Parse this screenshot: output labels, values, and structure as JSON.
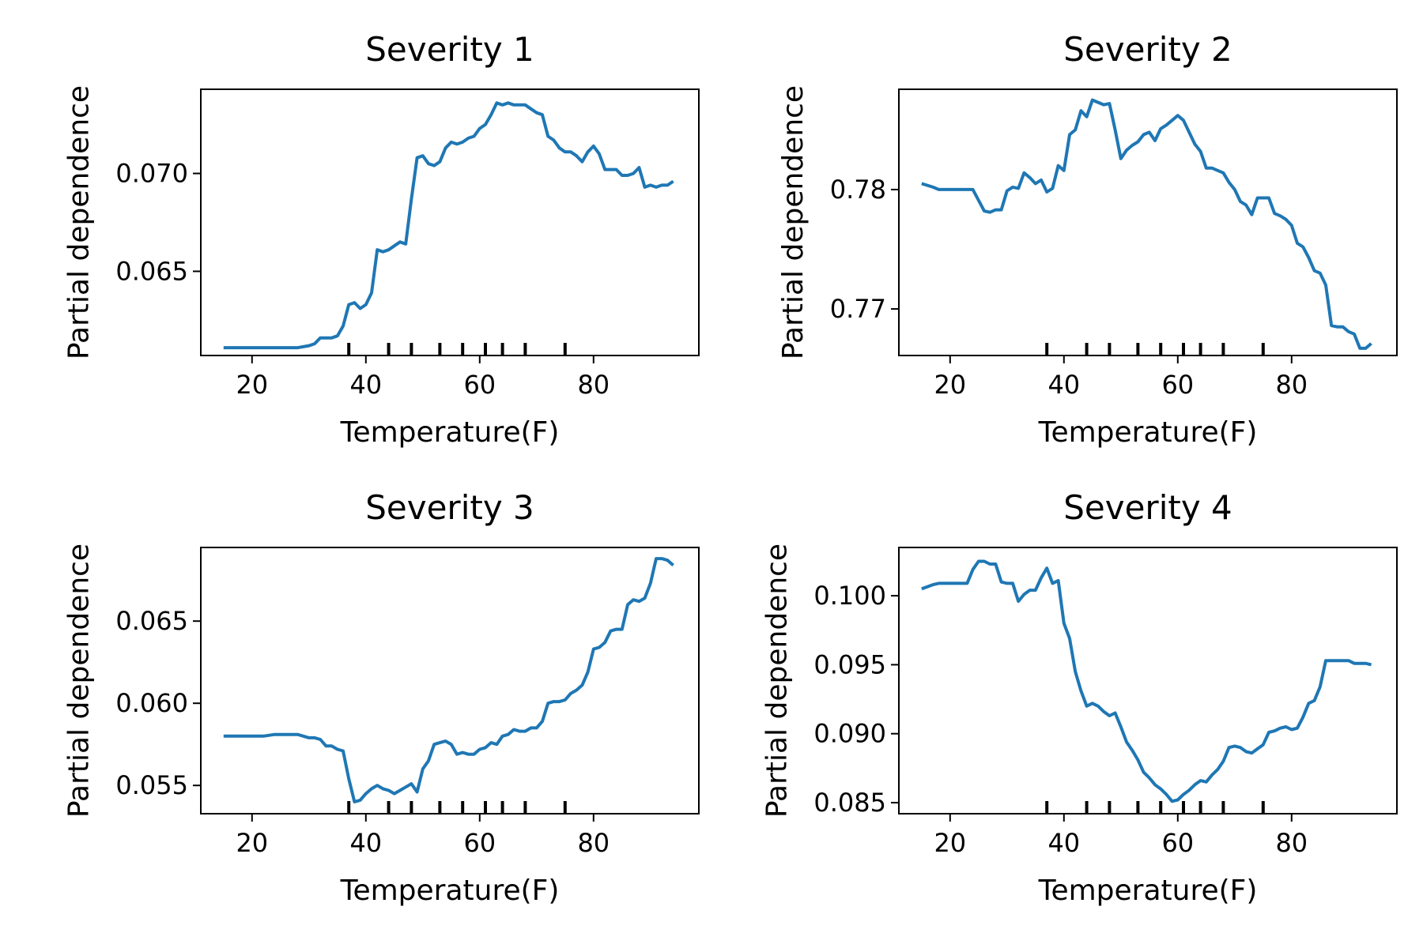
{
  "figure": {
    "background": "#ffffff",
    "line_color": "#1f77b4"
  },
  "chart_data": [
    {
      "type": "line",
      "title": "Severity 1",
      "xlabel": "Temperature(F)",
      "ylabel": "Partial dependence",
      "xlim": [
        11,
        98.5
      ],
      "ylim": [
        0.0607,
        0.0743
      ],
      "xticks": [
        20,
        40,
        60,
        80
      ],
      "xtick_labels": [
        "20",
        "40",
        "60",
        "80"
      ],
      "yticks": [
        0.065,
        0.07
      ],
      "ytick_labels": [
        "0.065",
        "0.070"
      ],
      "rug": [
        37,
        44,
        48,
        53,
        57,
        61,
        64,
        68,
        75
      ],
      "grid": false,
      "series": [
        {
          "x": [
            15,
            18,
            22,
            25,
            28,
            30,
            31,
            32,
            34,
            35,
            36,
            37,
            38,
            39,
            40,
            41,
            42,
            43,
            44,
            45,
            46,
            47,
            48,
            49,
            50,
            51,
            52,
            53,
            54,
            55,
            56,
            57,
            58,
            59,
            60,
            61,
            62,
            63,
            64,
            65,
            66,
            67,
            68,
            69,
            70,
            71,
            72,
            73,
            74,
            75,
            76,
            77,
            78,
            79,
            80,
            81,
            82,
            83,
            84,
            85,
            86,
            87,
            88,
            89,
            90,
            91,
            92,
            93,
            94
          ],
          "y": [
            0.0611,
            0.0611,
            0.0611,
            0.0611,
            0.0611,
            0.0612,
            0.0613,
            0.0616,
            0.0616,
            0.0617,
            0.0622,
            0.0633,
            0.0634,
            0.0631,
            0.0633,
            0.0639,
            0.0661,
            0.066,
            0.0661,
            0.0663,
            0.0665,
            0.0664,
            0.0687,
            0.0708,
            0.0709,
            0.0705,
            0.0704,
            0.0706,
            0.0713,
            0.0716,
            0.0715,
            0.0716,
            0.0718,
            0.0719,
            0.0723,
            0.0725,
            0.073,
            0.0736,
            0.0735,
            0.0736,
            0.0735,
            0.0735,
            0.0735,
            0.0733,
            0.0731,
            0.073,
            0.0719,
            0.0717,
            0.0713,
            0.0711,
            0.0711,
            0.0709,
            0.0706,
            0.0711,
            0.0714,
            0.071,
            0.0702,
            0.0702,
            0.0702,
            0.0699,
            0.0699,
            0.07,
            0.0703,
            0.0693,
            0.0694,
            0.0693,
            0.0694,
            0.0694,
            0.0696
          ]
        }
      ]
    },
    {
      "type": "line",
      "title": "Severity 2",
      "xlabel": "Temperature(F)",
      "ylabel": "Partial dependence",
      "xlim": [
        11,
        98.5
      ],
      "ylim": [
        0.7661,
        0.7884
      ],
      "xticks": [
        20,
        40,
        60,
        80
      ],
      "xtick_labels": [
        "20",
        "40",
        "60",
        "80"
      ],
      "yticks": [
        0.77,
        0.78
      ],
      "ytick_labels": [
        "0.77",
        "0.78"
      ],
      "rug": [
        37,
        44,
        48,
        53,
        57,
        61,
        64,
        68,
        75
      ],
      "grid": false,
      "series": [
        {
          "x": [
            15,
            17,
            18,
            20,
            22,
            24,
            25,
            26,
            27,
            28,
            29,
            30,
            31,
            32,
            33,
            34,
            35,
            36,
            37,
            38,
            39,
            40,
            41,
            42,
            43,
            44,
            45,
            46,
            47,
            48,
            49,
            50,
            51,
            52,
            53,
            54,
            55,
            56,
            57,
            58,
            59,
            60,
            61,
            62,
            63,
            64,
            65,
            66,
            67,
            68,
            69,
            70,
            71,
            72,
            73,
            74,
            75,
            76,
            77,
            78,
            79,
            80,
            81,
            82,
            83,
            84,
            85,
            86,
            87,
            88,
            89,
            90,
            91,
            92,
            93,
            94
          ],
          "y": [
            0.7805,
            0.7802,
            0.78,
            0.78,
            0.78,
            0.78,
            0.7791,
            0.7782,
            0.7781,
            0.7783,
            0.7783,
            0.7799,
            0.7802,
            0.7801,
            0.7814,
            0.781,
            0.7805,
            0.7808,
            0.7798,
            0.7801,
            0.782,
            0.7816,
            0.7846,
            0.785,
            0.7866,
            0.7861,
            0.7875,
            0.7873,
            0.7871,
            0.7872,
            0.785,
            0.7826,
            0.7833,
            0.7837,
            0.784,
            0.7846,
            0.7848,
            0.7841,
            0.7851,
            0.7854,
            0.7858,
            0.7862,
            0.7858,
            0.7848,
            0.7838,
            0.7832,
            0.7818,
            0.7818,
            0.7816,
            0.7814,
            0.7806,
            0.78,
            0.779,
            0.7787,
            0.7779,
            0.7793,
            0.7793,
            0.7793,
            0.778,
            0.7778,
            0.7775,
            0.777,
            0.7755,
            0.7752,
            0.7743,
            0.7732,
            0.773,
            0.772,
            0.7686,
            0.7685,
            0.7685,
            0.7681,
            0.7679,
            0.7667,
            0.7667,
            0.7671
          ]
        }
      ]
    },
    {
      "type": "line",
      "title": "Severity 3",
      "xlabel": "Temperature(F)",
      "ylabel": "Partial dependence",
      "xlim": [
        11,
        98.5
      ],
      "ylim": [
        0.05328,
        0.06948
      ],
      "xticks": [
        20,
        40,
        60,
        80
      ],
      "xtick_labels": [
        "20",
        "40",
        "60",
        "80"
      ],
      "yticks": [
        0.055,
        0.06,
        0.065
      ],
      "ytick_labels": [
        "0.055",
        "0.060",
        "0.065"
      ],
      "rug": [
        37,
        44,
        48,
        53,
        57,
        61,
        64,
        68,
        75
      ],
      "grid": false,
      "series": [
        {
          "x": [
            15,
            18,
            20,
            22,
            24,
            26,
            27,
            28,
            29,
            30,
            31,
            32,
            33,
            34,
            35,
            36,
            37,
            38,
            39,
            40,
            41,
            42,
            43,
            44,
            45,
            46,
            47,
            48,
            49,
            50,
            51,
            52,
            53,
            54,
            55,
            56,
            57,
            58,
            59,
            60,
            61,
            62,
            63,
            64,
            65,
            66,
            67,
            68,
            69,
            70,
            71,
            72,
            73,
            74,
            75,
            76,
            77,
            78,
            79,
            80,
            81,
            82,
            83,
            84,
            85,
            86,
            87,
            88,
            89,
            90,
            91,
            92,
            93,
            94
          ],
          "y": [
            0.058,
            0.058,
            0.058,
            0.058,
            0.0581,
            0.0581,
            0.0581,
            0.0581,
            0.058,
            0.0579,
            0.0579,
            0.0578,
            0.0574,
            0.0574,
            0.0572,
            0.0571,
            0.0554,
            0.054,
            0.0541,
            0.0545,
            0.0548,
            0.055,
            0.0548,
            0.0547,
            0.0545,
            0.0547,
            0.0549,
            0.0551,
            0.0546,
            0.056,
            0.0565,
            0.0575,
            0.0576,
            0.0577,
            0.0575,
            0.0569,
            0.057,
            0.0569,
            0.0569,
            0.0572,
            0.0573,
            0.0576,
            0.0575,
            0.058,
            0.0581,
            0.0584,
            0.0583,
            0.0583,
            0.0585,
            0.0585,
            0.0589,
            0.06,
            0.0601,
            0.0601,
            0.0602,
            0.0606,
            0.0608,
            0.0611,
            0.0619,
            0.0633,
            0.0634,
            0.0637,
            0.0644,
            0.0645,
            0.0645,
            0.066,
            0.0663,
            0.0662,
            0.0664,
            0.0673,
            0.0688,
            0.0688,
            0.0687,
            0.0684
          ]
        }
      ]
    },
    {
      "type": "line",
      "title": "Severity 4",
      "xlabel": "Temperature(F)",
      "ylabel": "Partial dependence",
      "xlim": [
        11,
        98.5
      ],
      "ylim": [
        0.0842,
        0.1035
      ],
      "xticks": [
        20,
        40,
        60,
        80
      ],
      "xtick_labels": [
        "20",
        "40",
        "60",
        "80"
      ],
      "yticks": [
        0.085,
        0.09,
        0.095,
        0.1
      ],
      "ytick_labels": [
        "0.085",
        "0.090",
        "0.095",
        "0.100"
      ],
      "rug": [
        37,
        44,
        48,
        53,
        57,
        61,
        64,
        68,
        75
      ],
      "grid": false,
      "series": [
        {
          "x": [
            15,
            17,
            18,
            20,
            22,
            23,
            24,
            25,
            26,
            27,
            28,
            29,
            30,
            31,
            32,
            33,
            34,
            35,
            36,
            37,
            38,
            39,
            40,
            41,
            42,
            43,
            44,
            45,
            46,
            47,
            48,
            49,
            50,
            51,
            52,
            53,
            54,
            55,
            56,
            57,
            58,
            59,
            60,
            61,
            62,
            63,
            64,
            65,
            66,
            67,
            68,
            69,
            70,
            71,
            72,
            73,
            74,
            75,
            76,
            77,
            78,
            79,
            80,
            81,
            82,
            83,
            84,
            85,
            86,
            87,
            88,
            89,
            90,
            91,
            92,
            93,
            94
          ],
          "y": [
            0.1005,
            0.1008,
            0.1009,
            0.1009,
            0.1009,
            0.1009,
            0.1019,
            0.1025,
            0.1025,
            0.1023,
            0.1023,
            0.101,
            0.1009,
            0.1009,
            0.0996,
            0.1001,
            0.1004,
            0.1004,
            0.1013,
            0.102,
            0.1009,
            0.1011,
            0.098,
            0.0969,
            0.0945,
            0.0931,
            0.092,
            0.0922,
            0.092,
            0.0916,
            0.0913,
            0.0915,
            0.0905,
            0.0894,
            0.0888,
            0.0881,
            0.0872,
            0.0868,
            0.0863,
            0.086,
            0.0856,
            0.0851,
            0.0852,
            0.0856,
            0.0859,
            0.0863,
            0.0866,
            0.0865,
            0.087,
            0.0874,
            0.088,
            0.089,
            0.0891,
            0.089,
            0.0887,
            0.0886,
            0.0889,
            0.0892,
            0.0901,
            0.0902,
            0.0904,
            0.0905,
            0.0903,
            0.0904,
            0.0912,
            0.0922,
            0.0924,
            0.0934,
            0.0953,
            0.0953,
            0.0953,
            0.0953,
            0.0953,
            0.0951,
            0.0951,
            0.0951,
            0.095
          ]
        }
      ]
    }
  ]
}
